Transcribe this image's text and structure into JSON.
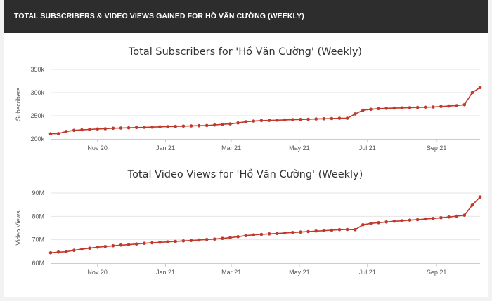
{
  "header": {
    "title": "TOTAL SUBSCRIBERS & VIDEO VIEWS GAINED FOR HỒ VĂN CƯỜNG (WEEKLY)"
  },
  "colors": {
    "series": "#c0392b",
    "grid": "#e6e6e6",
    "header_bg": "#2d2d2d"
  },
  "chart_data": [
    {
      "type": "line",
      "title": "Total Subscribers for 'Hồ Văn Cường' (Weekly)",
      "ylabel": "Subscribers",
      "yticks": [
        "200k",
        "250k",
        "300k",
        "350k"
      ],
      "ytick_values": [
        200000,
        250000,
        300000,
        350000
      ],
      "ylim": [
        200000,
        350000
      ],
      "xticks": [
        "Nov 20",
        "Jan 21",
        "Mar 21",
        "May 21",
        "Jul 21",
        "Sep 21"
      ],
      "xtick_dates": [
        "2020-11-01",
        "2021-01-01",
        "2021-03-01",
        "2021-05-01",
        "2021-07-01",
        "2021-09-01"
      ],
      "x": [
        "2020-09-20",
        "2020-09-27",
        "2020-10-04",
        "2020-10-11",
        "2020-10-18",
        "2020-10-25",
        "2020-11-01",
        "2020-11-08",
        "2020-11-15",
        "2020-11-22",
        "2020-11-29",
        "2020-12-06",
        "2020-12-13",
        "2020-12-20",
        "2020-12-27",
        "2021-01-03",
        "2021-01-10",
        "2021-01-17",
        "2021-01-24",
        "2021-01-31",
        "2021-02-07",
        "2021-02-14",
        "2021-02-21",
        "2021-02-28",
        "2021-03-07",
        "2021-03-14",
        "2021-03-21",
        "2021-03-28",
        "2021-04-04",
        "2021-04-11",
        "2021-04-18",
        "2021-04-25",
        "2021-05-02",
        "2021-05-09",
        "2021-05-16",
        "2021-05-23",
        "2021-05-30",
        "2021-06-06",
        "2021-06-13",
        "2021-06-20",
        "2021-06-27",
        "2021-07-04",
        "2021-07-11",
        "2021-07-18",
        "2021-07-25",
        "2021-08-01",
        "2021-08-08",
        "2021-08-15",
        "2021-08-22",
        "2021-08-29",
        "2021-09-05",
        "2021-09-12",
        "2021-09-19",
        "2021-09-26",
        "2021-10-03",
        "2021-10-10"
      ],
      "series": [
        {
          "values": [
            211000,
            211500,
            216000,
            218500,
            219500,
            220500,
            221500,
            222000,
            223000,
            223500,
            224000,
            224500,
            225000,
            225500,
            226000,
            226500,
            227000,
            227500,
            228000,
            228500,
            229000,
            230000,
            231500,
            232500,
            234500,
            237000,
            238500,
            239500,
            240000,
            240500,
            241000,
            241500,
            242000,
            242500,
            243000,
            243500,
            244000,
            244500,
            244500,
            254000,
            262000,
            264000,
            265500,
            266000,
            266500,
            267000,
            267500,
            268000,
            268500,
            269000,
            270000,
            271000,
            272000,
            274000,
            300000,
            311000
          ]
        }
      ]
    },
    {
      "type": "line",
      "title": "Total Video Views for 'Hồ Văn Cường' (Weekly)",
      "ylabel": "Video Views",
      "yticks": [
        "60M",
        "70M",
        "80M",
        "90M"
      ],
      "ytick_values": [
        60000000,
        70000000,
        80000000,
        90000000
      ],
      "ylim": [
        60000000,
        90000000
      ],
      "xticks": [
        "Nov 20",
        "Jan 21",
        "Mar 21",
        "May 21",
        "Jul 21",
        "Sep 21"
      ],
      "xtick_dates": [
        "2020-11-01",
        "2021-01-01",
        "2021-03-01",
        "2021-05-01",
        "2021-07-01",
        "2021-09-01"
      ],
      "x": [
        "2020-09-20",
        "2020-09-27",
        "2020-10-04",
        "2020-10-11",
        "2020-10-18",
        "2020-10-25",
        "2020-11-01",
        "2020-11-08",
        "2020-11-15",
        "2020-11-22",
        "2020-11-29",
        "2020-12-06",
        "2020-12-13",
        "2020-12-20",
        "2020-12-27",
        "2021-01-03",
        "2021-01-10",
        "2021-01-17",
        "2021-01-24",
        "2021-01-31",
        "2021-02-07",
        "2021-02-14",
        "2021-02-21",
        "2021-02-28",
        "2021-03-07",
        "2021-03-14",
        "2021-03-21",
        "2021-03-28",
        "2021-04-04",
        "2021-04-11",
        "2021-04-18",
        "2021-04-25",
        "2021-05-02",
        "2021-05-09",
        "2021-05-16",
        "2021-05-23",
        "2021-05-30",
        "2021-06-06",
        "2021-06-13",
        "2021-06-20",
        "2021-06-27",
        "2021-07-04",
        "2021-07-11",
        "2021-07-18",
        "2021-07-25",
        "2021-08-01",
        "2021-08-08",
        "2021-08-15",
        "2021-08-22",
        "2021-08-29",
        "2021-09-05",
        "2021-09-12",
        "2021-09-19",
        "2021-09-26",
        "2021-10-03",
        "2021-10-10"
      ],
      "series": [
        {
          "values": [
            64400000,
            64700000,
            64900000,
            65500000,
            66000000,
            66400000,
            66800000,
            67100000,
            67400000,
            67700000,
            67900000,
            68200000,
            68500000,
            68700000,
            68900000,
            69100000,
            69300000,
            69500000,
            69700000,
            69900000,
            70100000,
            70300000,
            70600000,
            70900000,
            71300000,
            71800000,
            72100000,
            72300000,
            72500000,
            72700000,
            72900000,
            73100000,
            73300000,
            73500000,
            73700000,
            73900000,
            74100000,
            74300000,
            74400000,
            74300000,
            76400000,
            77000000,
            77300000,
            77600000,
            77900000,
            78100000,
            78400000,
            78600000,
            78900000,
            79100000,
            79400000,
            79700000,
            80100000,
            80500000,
            84800000,
            88300000
          ]
        }
      ]
    }
  ]
}
